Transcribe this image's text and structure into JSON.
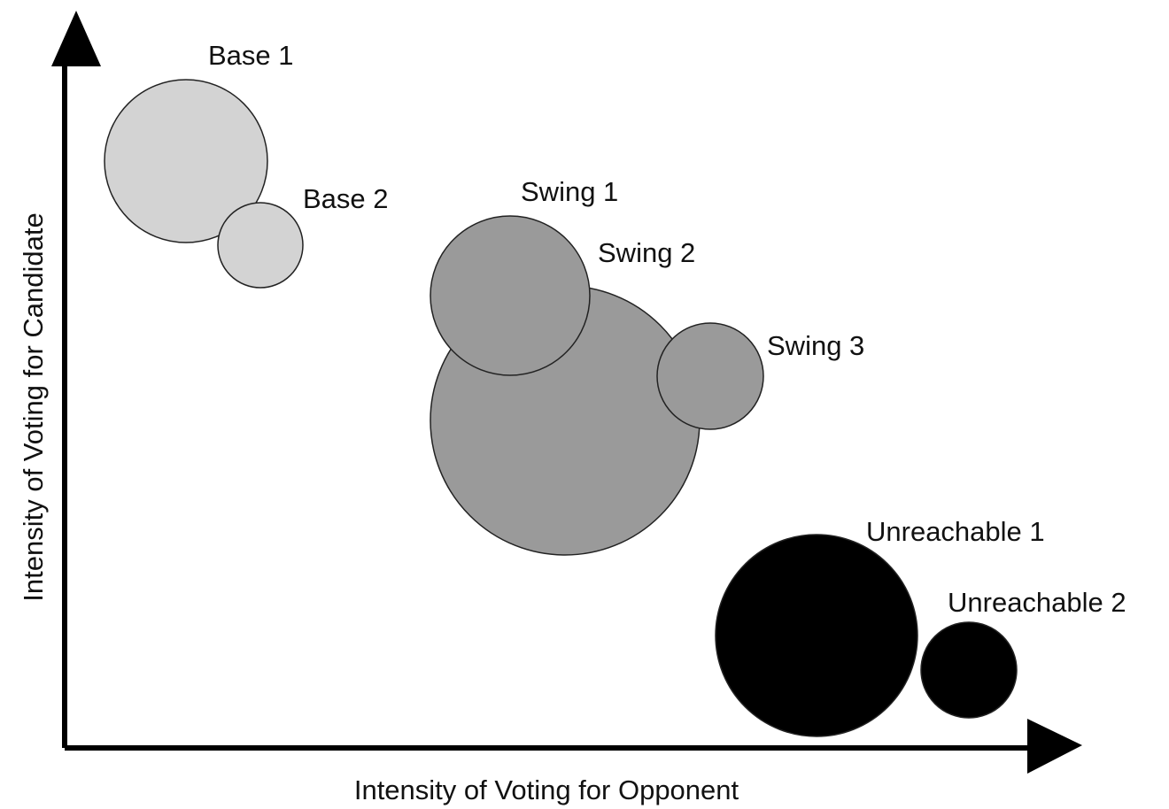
{
  "x_axis_label": "Intensity of Voting for Opponent",
  "y_axis_label": "Intensity of Voting for Candidate",
  "nodes": [
    {
      "label": "Base 1"
    },
    {
      "label": "Base 2"
    },
    {
      "label": "Swing 1"
    },
    {
      "label": "Swing 2"
    },
    {
      "label": "Swing 3"
    },
    {
      "label": "Unreachable 1"
    },
    {
      "label": "Unreachable 2"
    }
  ]
}
